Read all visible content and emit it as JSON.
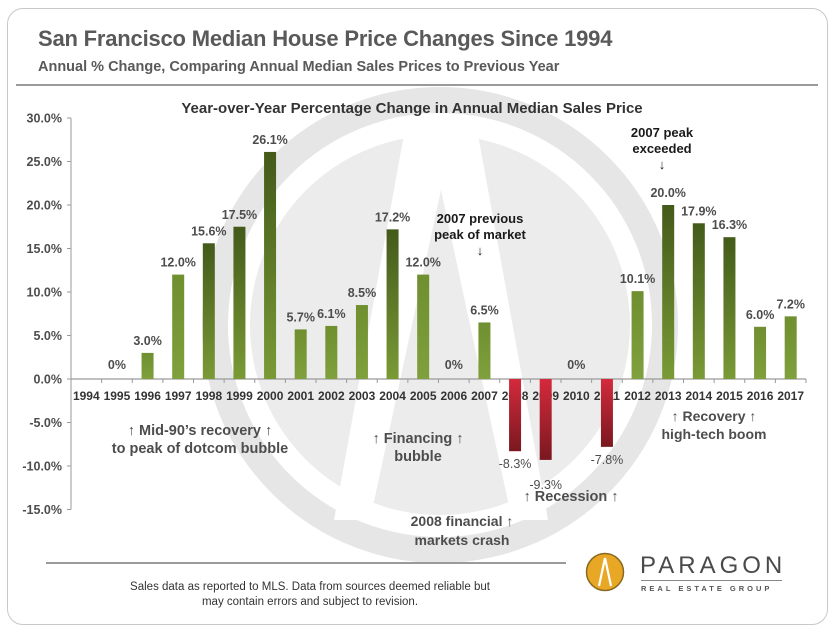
{
  "header": {
    "title": "San Francisco Median House Price Changes Since 1994",
    "subtitle": "Annual % Change, Comparing Annual Median Sales Prices to Previous Year"
  },
  "chart_data": {
    "type": "bar",
    "title": "Year-over-Year Percentage Change in Annual Median Sales Price",
    "xlabel": "",
    "ylabel": "",
    "ylim": [
      -15,
      30
    ],
    "yticks": [
      30,
      25,
      20,
      15,
      10,
      5,
      0,
      -5,
      -10,
      -15
    ],
    "ytick_labels": [
      "30.0%",
      "25.0%",
      "20.0%",
      "15.0%",
      "10.0%",
      "5.0%",
      "0.0%",
      "-5.0%",
      "-10.0%",
      "-15.0%"
    ],
    "grid": false,
    "categories": [
      "1994",
      "1995",
      "1996",
      "1997",
      "1998",
      "1999",
      "2000",
      "2001",
      "2002",
      "2003",
      "2004",
      "2005",
      "2006",
      "2007",
      "2008",
      "2009",
      "2010",
      "2011",
      "2012",
      "2013",
      "2014",
      "2015",
      "2016",
      "2017"
    ],
    "values": [
      null,
      0,
      3.0,
      12.0,
      15.6,
      17.5,
      26.1,
      5.7,
      6.1,
      8.5,
      17.2,
      12.0,
      0,
      6.5,
      -8.3,
      -9.3,
      0,
      -7.8,
      10.1,
      20.0,
      17.9,
      16.3,
      6.0,
      7.2
    ],
    "data_labels": [
      "",
      "0%",
      "3.0%",
      "12.0%",
      "15.6%",
      "17.5%",
      "26.1%",
      "5.7%",
      "6.1%",
      "8.5%",
      "17.2%",
      "12.0%",
      "0%",
      "6.5%",
      "-8.3%",
      "-9.3%",
      "0%",
      "-7.8%",
      "10.1%",
      "20.0%",
      "17.9%",
      "16.3%",
      "6.0%",
      "7.2%"
    ],
    "bar_styles": [
      "",
      "",
      "light",
      "light",
      "dark",
      "dark",
      "dark",
      "light",
      "light",
      "light",
      "dark",
      "light",
      "",
      "light",
      "red",
      "red",
      "",
      "red",
      "light",
      "dark",
      "dark",
      "dark",
      "light",
      "light"
    ],
    "colors": {
      "light_top": "#6f8f30",
      "light_bottom": "#7fa03c",
      "dark_top": "#435a1a",
      "dark_bottom": "#7a9a36",
      "red_top": "#d42a3c",
      "red_bottom": "#7a1820"
    },
    "annotations": [
      {
        "lines": [
          "↑  Mid-90’s recovery ↑",
          "to peak of dotcom bubble"
        ]
      },
      {
        "lines": [
          "↑ Financing ↑",
          "bubble"
        ]
      },
      {
        "lines": [
          "2007 previous",
          "peak of market",
          "↓"
        ]
      },
      {
        "lines": [
          "↑ Recession ↑"
        ]
      },
      {
        "lines": [
          "2008 financial ↑",
          "markets crash"
        ]
      },
      {
        "lines": [
          "2007 peak",
          "exceeded",
          "↓"
        ]
      },
      {
        "lines": [
          "↑      Recovery      ↑",
          "high-tech boom"
        ]
      }
    ]
  },
  "footer": {
    "note_line1": "Sales data as reported to MLS. Data from sources deemed reliable but",
    "note_line2": "may contain errors and subject to revision."
  },
  "brand": {
    "name": "PARAGON",
    "tagline": "REAL ESTATE GROUP",
    "logo_color": "#e8a825"
  }
}
